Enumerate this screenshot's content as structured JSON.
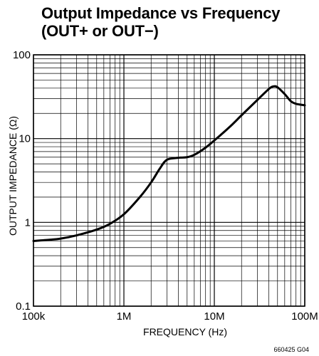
{
  "chart_data": {
    "type": "line",
    "title_line1": "Output Impedance vs Frequency",
    "title_line2": "(OUT+ or OUT−)",
    "xlabel": "FREQUENCY (Hz)",
    "ylabel": "OUTPUT IMPEDANCE (Ω)",
    "x_scale": "log",
    "y_scale": "log",
    "xlim": [
      100000,
      100000000
    ],
    "ylim": [
      0.1,
      100
    ],
    "x_ticks": [
      {
        "value": 100000,
        "label": "100k"
      },
      {
        "value": 1000000,
        "label": "1M"
      },
      {
        "value": 10000000,
        "label": "10M"
      },
      {
        "value": 100000000,
        "label": "100M"
      }
    ],
    "y_ticks": [
      {
        "value": 0.1,
        "label": "0.1"
      },
      {
        "value": 1,
        "label": "1"
      },
      {
        "value": 10,
        "label": "10"
      },
      {
        "value": 100,
        "label": "100"
      }
    ],
    "grid": true,
    "series": [
      {
        "color": "#000000",
        "x": [
          100000,
          150000,
          200000,
          300000,
          500000,
          700000,
          1000000,
          1500000,
          2000000,
          2500000,
          3000000,
          4000000,
          5000000,
          6000000,
          8000000,
          10000000,
          15000000,
          20000000,
          30000000,
          40000000,
          45000000,
          50000000,
          60000000,
          70000000,
          80000000,
          100000000
        ],
        "y": [
          0.6,
          0.62,
          0.64,
          0.7,
          0.82,
          0.96,
          1.25,
          2.0,
          3.0,
          4.4,
          5.6,
          5.9,
          6.0,
          6.4,
          7.8,
          9.5,
          14.0,
          19.0,
          29.0,
          39.0,
          42.0,
          41.0,
          34.0,
          28.0,
          26.0,
          25.0
        ]
      }
    ],
    "figure_id": "660425 G04"
  }
}
